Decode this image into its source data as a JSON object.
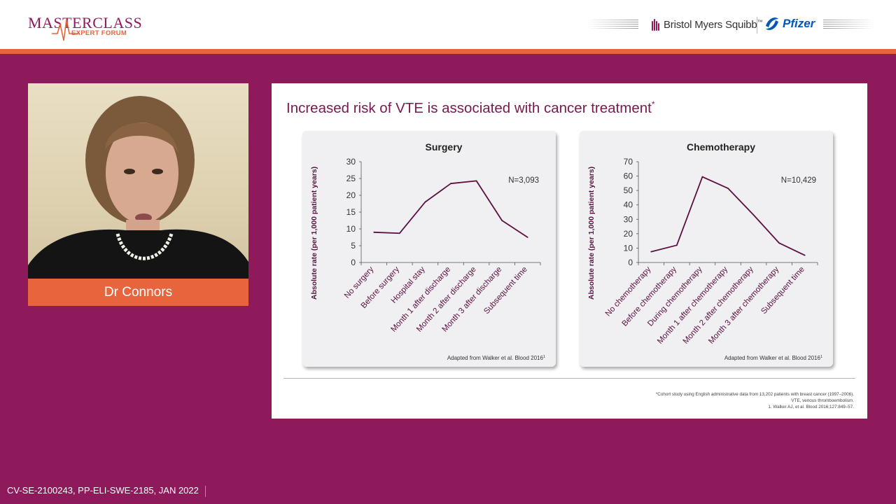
{
  "header": {
    "logo_main": "MASTERCLASS",
    "logo_sub": "EXPERT FORUM",
    "sponsor_1": "Bristol Myers Squibb",
    "sponsor_1_tm": "™",
    "sponsor_2": "Pfizer"
  },
  "video": {
    "speaker_name": "Dr Connors"
  },
  "slide": {
    "title": "Increased risk of VTE is associated with cancer treatment",
    "title_mark": "*",
    "footnote_lines": [
      "*Cohort study using English administrative data from 13,202 patients with breast cancer (1997–2006).",
      "VTE, venous thromboembolism.",
      "1. Walker AJ, et al. Blood 2016;127:849–57."
    ]
  },
  "footer": {
    "code": "CV-SE-2100243, PP-ELI-SWE-2185, JAN 2022"
  },
  "colors": {
    "background": "#8e1a5b",
    "accent_orange": "#e8643c",
    "line": "#5a1040",
    "title": "#7a1850"
  },
  "chart_data": [
    {
      "type": "line",
      "title": "Surgery",
      "ylabel": "Absolute rate (per 1,000 patient years)",
      "xlabel": "",
      "ylim": [
        0,
        30
      ],
      "yticks": [
        0,
        5,
        10,
        15,
        20,
        25,
        30
      ],
      "categories": [
        "No surgery",
        "Before surgery",
        "Hospital stay",
        "Month 1 after discharge",
        "Month 2 after discharge",
        "Month 3 after discharge",
        "Subsequent time"
      ],
      "values": [
        9,
        8.7,
        18,
        23.5,
        24.3,
        12.5,
        7.5
      ],
      "annotation": "N=3,093",
      "source": "Adapted from Walker et al. Blood 2016",
      "source_ref": "1",
      "grid": false,
      "legend": "none"
    },
    {
      "type": "line",
      "title": "Chemotherapy",
      "ylabel": "Absolute rate (per 1,000 patient years)",
      "xlabel": "",
      "ylim": [
        0,
        70
      ],
      "yticks": [
        0,
        10,
        20,
        30,
        40,
        50,
        60,
        70
      ],
      "categories": [
        "No chemotherapy",
        "Before chemotherapy",
        "During chemotherapy",
        "Month 1 after chemotherapy",
        "Month 2 after chemotherapy",
        "Month 3 after chemotherapy",
        "Subsequent time"
      ],
      "values": [
        7.5,
        12,
        59.5,
        51.5,
        33,
        13.5,
        5
      ],
      "annotation": "N=10,429",
      "source": "Adapted from Walker et al. Blood 2016",
      "source_ref": "1",
      "grid": false,
      "legend": "none"
    }
  ]
}
